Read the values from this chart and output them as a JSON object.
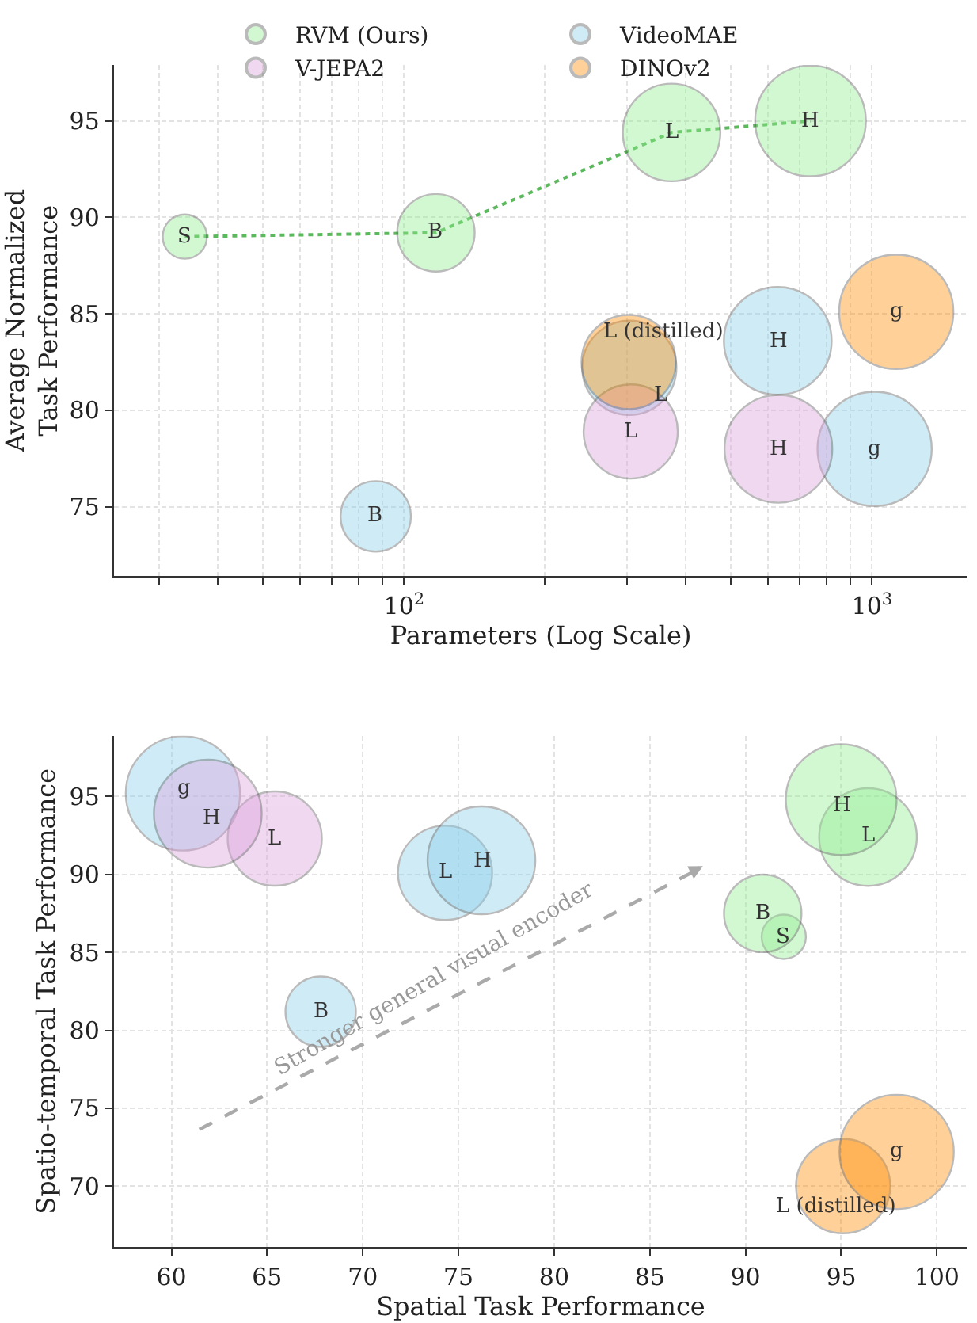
{
  "chart_data": [
    {
      "type": "bubble",
      "xlabel": "Parameters (Log Scale)",
      "ylabel": "Average Normalized\nTask Performance",
      "log": "x",
      "grid": true,
      "legend": "top",
      "marker": "circle",
      "xlim": [
        24,
        1600
      ],
      "ylim": [
        71.4,
        97.9
      ],
      "xticks": [
        {
          "value": 30,
          "label": null
        },
        {
          "value": 40,
          "label": null
        },
        {
          "value": 50,
          "label": null
        },
        {
          "value": 60,
          "label": null
        },
        {
          "value": 70,
          "label": null
        },
        {
          "value": 80,
          "label": null
        },
        {
          "value": 90,
          "label": null
        },
        {
          "value": 100,
          "label": "10$^{2}$"
        },
        {
          "value": 200,
          "label": null
        },
        {
          "value": 300,
          "label": null
        },
        {
          "value": 400,
          "label": null
        },
        {
          "value": 500,
          "label": null
        },
        {
          "value": 600,
          "label": null
        },
        {
          "value": 700,
          "label": null
        },
        {
          "value": 800,
          "label": null
        },
        {
          "value": 900,
          "label": null
        },
        {
          "value": 1000,
          "label": "10$^{3}$"
        }
      ],
      "yticks": [
        75,
        80,
        85,
        90,
        95
      ],
      "series": [
        {
          "type": "line",
          "color": "#5cb85c",
          "line_style": "dotted",
          "marker": "none",
          "x": [
            34,
            117,
            373,
            739
          ],
          "values": [
            89.0,
            89.2,
            94.4,
            95.0
          ]
        },
        {
          "name": "RVM (Ours)",
          "color": "#90ee90",
          "x": [
            34,
            117,
            373,
            739
          ],
          "values": [
            89.0,
            89.2,
            94.4,
            95.0
          ],
          "sizes": [
            0.15,
            0.46,
            0.73,
            0.94
          ],
          "value_labels": [
            "S",
            "B",
            "L",
            "H"
          ]
        },
        {
          "name": "VideoMAE",
          "color": "#87ceeb",
          "x": [
            87,
            303,
            629,
            1013
          ],
          "values": [
            74.5,
            82.2,
            83.6,
            78.0
          ],
          "sizes": [
            0.38,
            0.68,
            0.89,
            1.0
          ],
          "value_labels": [
            "B",
            "L",
            "H",
            "g"
          ]
        },
        {
          "name": "V-JEPA2",
          "color": "#dda0dd",
          "x": [
            305,
            631
          ],
          "values": [
            78.9,
            78.0
          ],
          "sizes": [
            0.68,
            0.89
          ],
          "value_labels": [
            "L",
            "H"
          ]
        },
        {
          "name": "DINOv2",
          "color": "#ff8c00",
          "x": [
            302,
            1127
          ],
          "values": [
            82.5,
            85.1
          ],
          "sizes": [
            0.68,
            1.0
          ],
          "value_labels": [
            "L (distilled)",
            "g"
          ]
        }
      ]
    },
    {
      "type": "bubble",
      "xlabel": "Spatial Task Performance",
      "ylabel": "Spatio-temporal Task Performance",
      "grid": true,
      "marker": "circle",
      "xlim": [
        57.0,
        101.6
      ],
      "ylim": [
        66.1,
        98.9
      ],
      "xticks": [
        60,
        65,
        70,
        75,
        80,
        85,
        90,
        95,
        100
      ],
      "yticks": [
        70,
        75,
        80,
        85,
        90,
        95
      ],
      "annotations": [
        "Stronger general visual encoder"
      ],
      "series": [
        {
          "color": "#87ceeb",
          "x": [
            67.8,
            74.3,
            76.2,
            60.6
          ],
          "values": [
            81.2,
            90.1,
            90.9,
            95.2
          ],
          "sizes": [
            0.38,
            0.68,
            0.89,
            1.0
          ],
          "value_labels": [
            "B",
            "L",
            "H",
            "g"
          ]
        },
        {
          "color": "#dda0dd",
          "x": [
            65.4,
            61.9
          ],
          "values": [
            92.3,
            93.9
          ],
          "sizes": [
            0.68,
            0.89
          ],
          "value_labels": [
            "L",
            "H"
          ]
        },
        {
          "color": "#90ee90",
          "x": [
            92.0,
            90.9,
            96.4,
            95.0
          ],
          "values": [
            86.0,
            87.5,
            92.4,
            94.8
          ],
          "sizes": [
            0.15,
            0.46,
            0.73,
            0.94
          ],
          "value_labels": [
            "S",
            "B",
            "L",
            "H"
          ]
        },
        {
          "color": "#ff8c00",
          "x": [
            95.1,
            97.9
          ],
          "values": [
            70.0,
            72.2
          ],
          "sizes": [
            0.68,
            1.0
          ],
          "value_labels": [
            "L (distilled)",
            "g"
          ]
        }
      ]
    }
  ]
}
